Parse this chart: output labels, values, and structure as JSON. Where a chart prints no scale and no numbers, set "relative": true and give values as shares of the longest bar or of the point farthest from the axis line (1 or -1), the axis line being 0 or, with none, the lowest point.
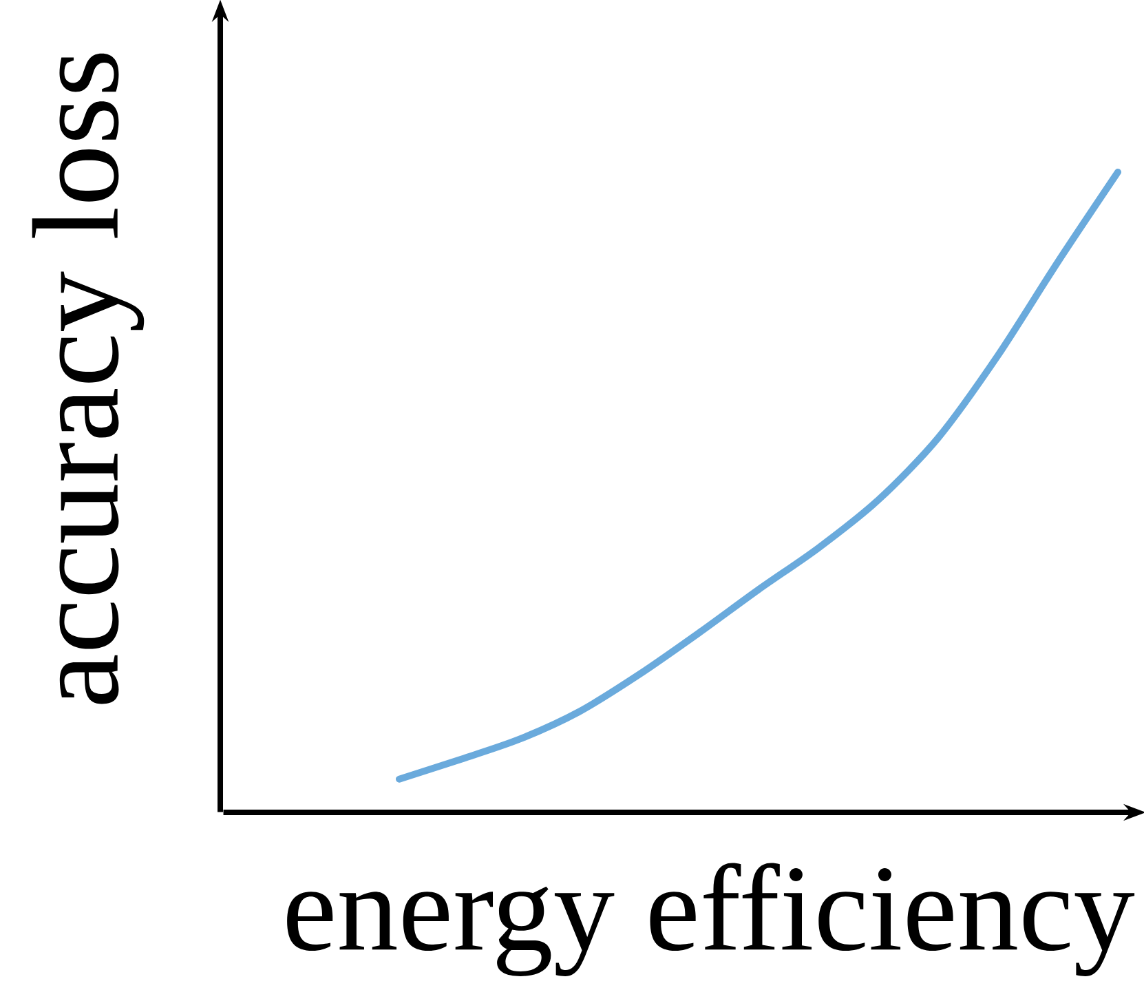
{
  "chart_data": {
    "type": "line",
    "relative": true,
    "xlabel": "energy efficiency",
    "ylabel": "accuracy loss",
    "color": "#6aaadc",
    "categories": [
      null,
      null,
      null,
      null,
      null,
      null,
      null,
      null,
      null,
      null,
      null,
      null,
      null
    ],
    "values": [
      0.052,
      0.082,
      0.114,
      0.157,
      0.215,
      0.28,
      0.348,
      0.413,
      0.488,
      0.585,
      0.714,
      0.86,
      1
    ]
  }
}
